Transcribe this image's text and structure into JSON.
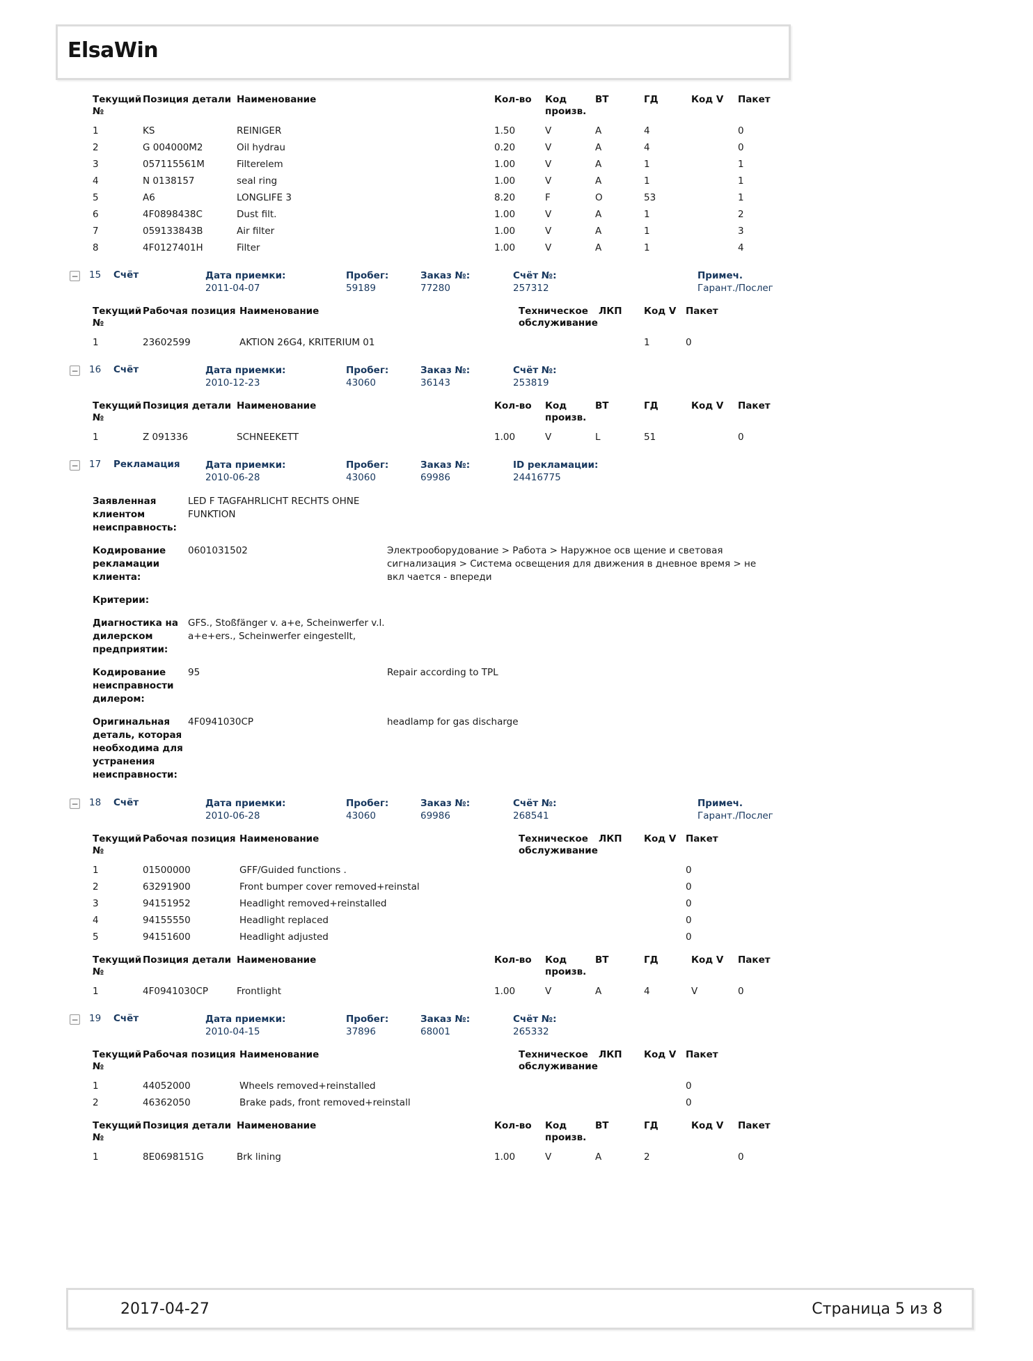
{
  "app": {
    "title": "ElsaWin"
  },
  "labels": {
    "collapse_glyph": "−"
  },
  "footer": {
    "date": "2017-04-27",
    "page": "Страница 5 из 8"
  },
  "blocks": [
    {
      "kind": "parts_table",
      "columns": [
        "Текущий\n№",
        "Позиция детали",
        "Наименование",
        "Кол-во",
        "Код\nпроизв.",
        "ВТ",
        "ГД",
        "Код V",
        "Пакет"
      ],
      "rows": [
        [
          "1",
          "KS",
          "REINIGER",
          "1.50",
          "V",
          "A",
          "4",
          "",
          "0"
        ],
        [
          "2",
          "G 004000M2",
          "Oil hydrau",
          "0.20",
          "V",
          "A",
          "4",
          "",
          "0"
        ],
        [
          "3",
          "057115561M",
          "Filterelem",
          "1.00",
          "V",
          "A",
          "1",
          "",
          "1"
        ],
        [
          "4",
          "N 0138157",
          "seal ring",
          "1.00",
          "V",
          "A",
          "1",
          "",
          "1"
        ],
        [
          "5",
          "A6",
          "LONGLIFE 3",
          "8.20",
          "F",
          "O",
          "53",
          "",
          "1"
        ],
        [
          "6",
          "4F0898438C",
          "Dust filt.",
          "1.00",
          "V",
          "A",
          "1",
          "",
          "2"
        ],
        [
          "7",
          "059133843B",
          "Air filter",
          "1.00",
          "V",
          "A",
          "1",
          "",
          "3"
        ],
        [
          "8",
          "4F0127401H",
          "Filter",
          "1.00",
          "V",
          "A",
          "1",
          "",
          "4"
        ]
      ]
    },
    {
      "kind": "section",
      "num": "15",
      "type": "Счёт",
      "fields": [
        {
          "label": "Дата приемки:",
          "value": "2011-04-07"
        },
        {
          "label": "Пробег:",
          "value": "59189"
        },
        {
          "label": "Заказ №:",
          "value": "77280"
        },
        {
          "label": "Счёт №:",
          "value": "257312"
        },
        {
          "label": "Примеч.",
          "value": "Гарант./Послег"
        }
      ]
    },
    {
      "kind": "work_table",
      "columns": [
        "Текущий\n№",
        "Рабочая позиция",
        "Наименование",
        "Техническое\nобслуживание",
        "ЛКП",
        "Код V",
        "Пакет"
      ],
      "rows": [
        [
          "1",
          "23602599",
          "AKTION 26G4, KRITERIUM 01",
          "",
          "",
          "1",
          "0"
        ]
      ]
    },
    {
      "kind": "section",
      "num": "16",
      "type": "Счёт",
      "fields": [
        {
          "label": "Дата приемки:",
          "value": "2010-12-23"
        },
        {
          "label": "Пробег:",
          "value": "43060"
        },
        {
          "label": "Заказ №:",
          "value": "36143"
        },
        {
          "label": "Счёт №:",
          "value": "253819"
        }
      ]
    },
    {
      "kind": "parts_table",
      "columns": [
        "Текущий\n№",
        "Позиция детали",
        "Наименование",
        "Кол-во",
        "Код\nпроизв.",
        "ВТ",
        "ГД",
        "Код V",
        "Пакет"
      ],
      "rows": [
        [
          "1",
          "Z 091336",
          "SCHNEEKETT",
          "1.00",
          "V",
          "L",
          "51",
          "",
          "0"
        ]
      ]
    },
    {
      "kind": "section",
      "num": "17",
      "type": "Рекламация",
      "fields": [
        {
          "label": "Дата приемки:",
          "value": "2010-06-28"
        },
        {
          "label": "Пробег:",
          "value": "43060"
        },
        {
          "label": "Заказ №:",
          "value": "69986"
        },
        {
          "label": "ID рекламации:",
          "value": "24416775"
        }
      ]
    },
    {
      "kind": "claim",
      "rows": [
        {
          "label": "Заявленная клиентом неисправность:",
          "value": "LED F TAGFAHRLICHT RECHTS OHNE FUNKTION",
          "desc": ""
        },
        {
          "label": "Кодирование рекламации клиента:",
          "value": "0601031502",
          "desc": "Электрооборудование > Работа > Наружное осв щение и световая сигнализация > Система освещения для движения в дневное время > не вкл чается - впереди"
        },
        {
          "label": "Критерии:",
          "value": "",
          "desc": ""
        },
        {
          "label": "Диагностика на дилерском предприятии:",
          "value": "GFS., Stoßfänger v. a+e, Scheinwerfer v.l. a+e+ers., Scheinwerfer eingestellt,",
          "desc": ""
        },
        {
          "label": "Кодирование неисправности дилером:",
          "value": "95",
          "desc": "Repair according to TPL"
        },
        {
          "label": "Оригинальная деталь, которая необходима для устранения неисправности:",
          "value": "4F0941030CP",
          "desc": "headlamp for gas discharge"
        }
      ]
    },
    {
      "kind": "section",
      "num": "18",
      "type": "Счёт",
      "fields": [
        {
          "label": "Дата приемки:",
          "value": "2010-06-28"
        },
        {
          "label": "Пробег:",
          "value": "43060"
        },
        {
          "label": "Заказ №:",
          "value": "69986"
        },
        {
          "label": "Счёт №:",
          "value": "268541"
        },
        {
          "label": "Примеч.",
          "value": "Гарант./Послег"
        }
      ]
    },
    {
      "kind": "work_table",
      "columns": [
        "Текущий\n№",
        "Рабочая позиция",
        "Наименование",
        "Техническое\nобслуживание",
        "ЛКП",
        "Код V",
        "Пакет"
      ],
      "rows": [
        [
          "1",
          "01500000",
          "GFF/Guided functions .",
          "",
          "",
          "",
          "0"
        ],
        [
          "2",
          "63291900",
          "Front bumper cover removed+reinstal",
          "",
          "",
          "",
          "0"
        ],
        [
          "3",
          "94151952",
          "Headlight removed+reinstalled",
          "",
          "",
          "",
          "0"
        ],
        [
          "4",
          "94155550",
          "Headlight replaced",
          "",
          "",
          "",
          "0"
        ],
        [
          "5",
          "94151600",
          "Headlight adjusted",
          "",
          "",
          "",
          "0"
        ]
      ]
    },
    {
      "kind": "parts_table",
      "columns": [
        "Текущий\n№",
        "Позиция детали",
        "Наименование",
        "Кол-во",
        "Код\nпроизв.",
        "ВТ",
        "ГД",
        "Код V",
        "Пакет"
      ],
      "rows": [
        [
          "1",
          "4F0941030CP",
          "Frontlight",
          "1.00",
          "V",
          "A",
          "4",
          "V",
          "0"
        ]
      ]
    },
    {
      "kind": "section",
      "num": "19",
      "type": "Счёт",
      "fields": [
        {
          "label": "Дата приемки:",
          "value": "2010-04-15"
        },
        {
          "label": "Пробег:",
          "value": "37896"
        },
        {
          "label": "Заказ №:",
          "value": "68001"
        },
        {
          "label": "Счёт №:",
          "value": "265332"
        }
      ]
    },
    {
      "kind": "work_table",
      "columns": [
        "Текущий\n№",
        "Рабочая позиция",
        "Наименование",
        "Техническое\nобслуживание",
        "ЛКП",
        "Код V",
        "Пакет"
      ],
      "rows": [
        [
          "1",
          "44052000",
          "Wheels removed+reinstalled",
          "",
          "",
          "",
          "0"
        ],
        [
          "2",
          "46362050",
          "Brake pads, front removed+reinstall",
          "",
          "",
          "",
          "0"
        ]
      ]
    },
    {
      "kind": "parts_table",
      "columns": [
        "Текущий\n№",
        "Позиция детали",
        "Наименование",
        "Кол-во",
        "Код\nпроизв.",
        "ВТ",
        "ГД",
        "Код V",
        "Пакет"
      ],
      "rows": [
        [
          "1",
          "8E0698151G",
          "Brk lining",
          "1.00",
          "V",
          "A",
          "2",
          "",
          "0"
        ]
      ]
    }
  ]
}
